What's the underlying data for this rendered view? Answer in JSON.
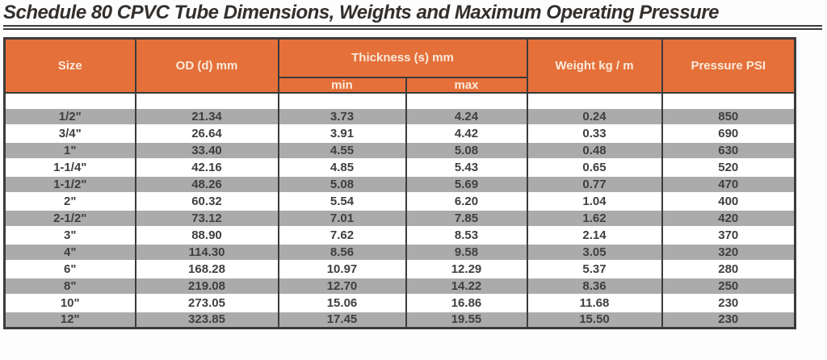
{
  "title": "Schedule 80 CPVC Tube Dimensions, Weights and Maximum Operating Pressure",
  "colors": {
    "header_bg": "#E5703A",
    "header_text": "#FAEADB",
    "subheader_text": "#F6C79B",
    "stripe_gray": "#ABABAB",
    "border_dark": "#3B3B3B",
    "data_text": "#3F3F3F",
    "title_text": "#332F2D"
  },
  "table": {
    "headers": {
      "size": "Size",
      "od": "OD (d) mm",
      "thickness": "Thickness (s) mm",
      "thickness_min": "min",
      "thickness_max": "max",
      "weight": "Weight kg / m",
      "pressure": "Pressure PSI"
    },
    "rows": [
      {
        "size": "1/2\"",
        "od_mm": "21.34",
        "thickness_min_mm": "3.73",
        "thickness_max_mm": "4.24",
        "weight_kg_m": "0.24",
        "pressure_psi": "850"
      },
      {
        "size": "3/4\"",
        "od_mm": "26.64",
        "thickness_min_mm": "3.91",
        "thickness_max_mm": "4.42",
        "weight_kg_m": "0.33",
        "pressure_psi": "690"
      },
      {
        "size": "1\"",
        "od_mm": "33.40",
        "thickness_min_mm": "4.55",
        "thickness_max_mm": "5.08",
        "weight_kg_m": "0.48",
        "pressure_psi": "630"
      },
      {
        "size": "1-1/4\"",
        "od_mm": "42.16",
        "thickness_min_mm": "4.85",
        "thickness_max_mm": "5.43",
        "weight_kg_m": "0.65",
        "pressure_psi": "520"
      },
      {
        "size": "1-1/2\"",
        "od_mm": "48.26",
        "thickness_min_mm": "5.08",
        "thickness_max_mm": "5.69",
        "weight_kg_m": "0.77",
        "pressure_psi": "470"
      },
      {
        "size": "2\"",
        "od_mm": "60.32",
        "thickness_min_mm": "5.54",
        "thickness_max_mm": "6.20",
        "weight_kg_m": "1.04",
        "pressure_psi": "400"
      },
      {
        "size": "2-1/2\"",
        "od_mm": "73.12",
        "thickness_min_mm": "7.01",
        "thickness_max_mm": "7.85",
        "weight_kg_m": "1.62",
        "pressure_psi": "420"
      },
      {
        "size": "3\"",
        "od_mm": "88.90",
        "thickness_min_mm": "7.62",
        "thickness_max_mm": "8.53",
        "weight_kg_m": "2.14",
        "pressure_psi": "370"
      },
      {
        "size": "4\"",
        "od_mm": "114.30",
        "thickness_min_mm": "8.56",
        "thickness_max_mm": "9.58",
        "weight_kg_m": "3.05",
        "pressure_psi": "320"
      },
      {
        "size": "6\"",
        "od_mm": "168.28",
        "thickness_min_mm": "10.97",
        "thickness_max_mm": "12.29",
        "weight_kg_m": "5.37",
        "pressure_psi": "280"
      },
      {
        "size": "8\"",
        "od_mm": "219.08",
        "thickness_min_mm": "12.70",
        "thickness_max_mm": "14.22",
        "weight_kg_m": "8.36",
        "pressure_psi": "250"
      },
      {
        "size": "10\"",
        "od_mm": "273.05",
        "thickness_min_mm": "15.06",
        "thickness_max_mm": "16.86",
        "weight_kg_m": "11.68",
        "pressure_psi": "230"
      },
      {
        "size": "12\"",
        "od_mm": "323.85",
        "thickness_min_mm": "17.45",
        "thickness_max_mm": "19.55",
        "weight_kg_m": "15.50",
        "pressure_psi": "230"
      }
    ]
  }
}
